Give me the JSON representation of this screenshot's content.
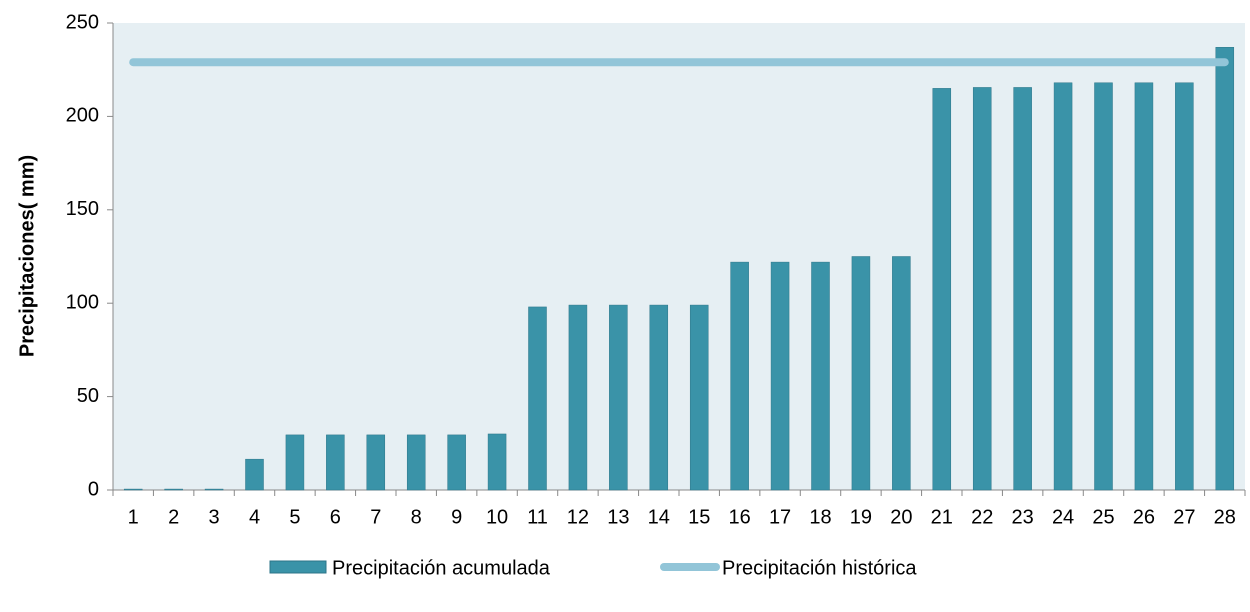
{
  "chart_data": {
    "type": "bar",
    "y_label": "Precipitaciones( mm)",
    "categories": [
      "1",
      "2",
      "3",
      "4",
      "5",
      "6",
      "7",
      "8",
      "9",
      "10",
      "11",
      "12",
      "13",
      "14",
      "15",
      "16",
      "17",
      "18",
      "19",
      "20",
      "21",
      "22",
      "23",
      "24",
      "25",
      "26",
      "27",
      "28"
    ],
    "series": [
      {
        "name": "Precipitación acumulada",
        "type": "bar",
        "color": "#3a93a8",
        "values": [
          0.5,
          0.5,
          0.5,
          16.5,
          29.5,
          29.5,
          29.5,
          29.5,
          29.5,
          30,
          98,
          99,
          99,
          99,
          99,
          122,
          122,
          122,
          125,
          125,
          215,
          215.5,
          215.5,
          218,
          218,
          218,
          218,
          237
        ]
      },
      {
        "name": "Precipitación histórica",
        "type": "line",
        "color": "#92c5d8",
        "values": [
          229,
          229,
          229,
          229,
          229,
          229,
          229,
          229,
          229,
          229,
          229,
          229,
          229,
          229,
          229,
          229,
          229,
          229,
          229,
          229,
          229,
          229,
          229,
          229,
          229,
          229,
          229,
          229
        ]
      }
    ],
    "ylim": [
      0,
      250
    ],
    "yticks": [
      0,
      50,
      100,
      150,
      200,
      250
    ],
    "grid": false,
    "plot_background": "#e6eff3",
    "legend": "bottom"
  }
}
